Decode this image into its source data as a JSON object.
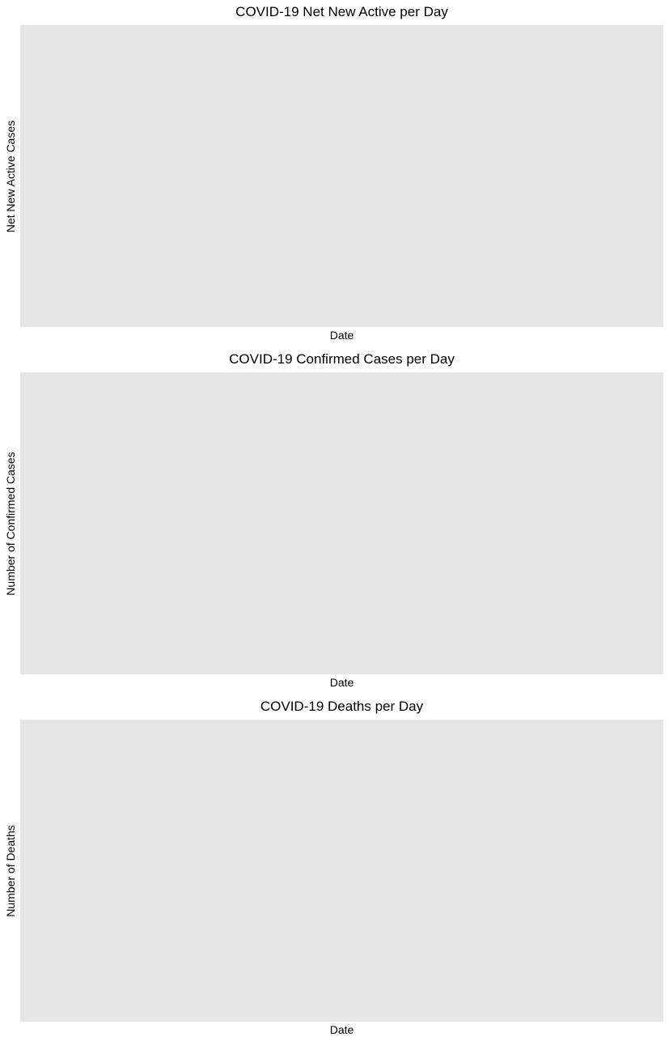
{
  "chart_data": [
    {
      "type": "line",
      "title": "COVID-19 Net New Active per Day",
      "xlabel": "Date",
      "ylabel": "Net New Active Cases",
      "x": [],
      "series": [],
      "grid": false,
      "panel_color": "#e5e5e5"
    },
    {
      "type": "line",
      "title": "COVID-19 Confirmed Cases per Day",
      "xlabel": "Date",
      "ylabel": "Number of Confirmed Cases",
      "x": [],
      "series": [],
      "grid": false,
      "panel_color": "#e5e5e5"
    },
    {
      "type": "line",
      "title": "COVID-19 Deaths per Day",
      "xlabel": "Date",
      "ylabel": "Number of Deaths",
      "x": [],
      "series": [],
      "grid": false,
      "panel_color": "#e5e5e5"
    }
  ]
}
